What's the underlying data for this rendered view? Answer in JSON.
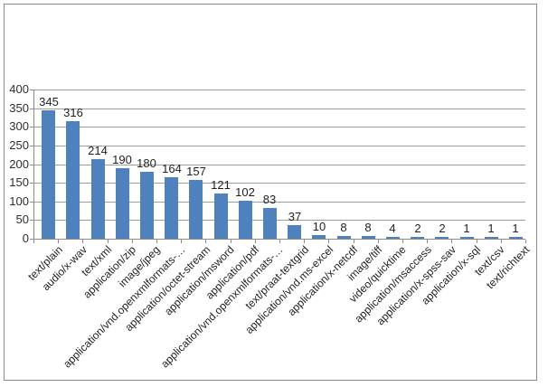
{
  "chart_data": {
    "type": "bar",
    "title": "",
    "xlabel": "",
    "ylabel": "",
    "categories": [
      "text/plain",
      "audio/x-wav",
      "text/xml",
      "application/zip",
      "image/jpeg",
      "application/vnd.openxmlformats-…",
      "application/octet-stream",
      "application/msword",
      "application/pdf",
      "application/vnd.openxmlformats-…",
      "text/praat-textgrid",
      "application/vnd.ms-excel",
      "application/x-netcdf",
      "image/tiff",
      "video/quicktime",
      "application/msaccess",
      "application/x-spss-sav",
      "application/x-sql",
      "text/csv",
      "text/richtext"
    ],
    "values": [
      345,
      316,
      214,
      190,
      180,
      164,
      157,
      121,
      102,
      83,
      37,
      10,
      8,
      8,
      4,
      2,
      2,
      1,
      1,
      1
    ],
    "ylim": [
      0,
      400
    ],
    "y_ticks": [
      0,
      50,
      100,
      150,
      200,
      250,
      300,
      350,
      400
    ],
    "grid": true,
    "legend_position": "none",
    "x_label_rotation_deg": 45,
    "colors": {
      "bar": "#4F81BD",
      "gridline": "#9d9d9d",
      "axis": "#8c8c8c",
      "frame_border": "#8b8b8b",
      "text": "#1f1f1f"
    }
  }
}
